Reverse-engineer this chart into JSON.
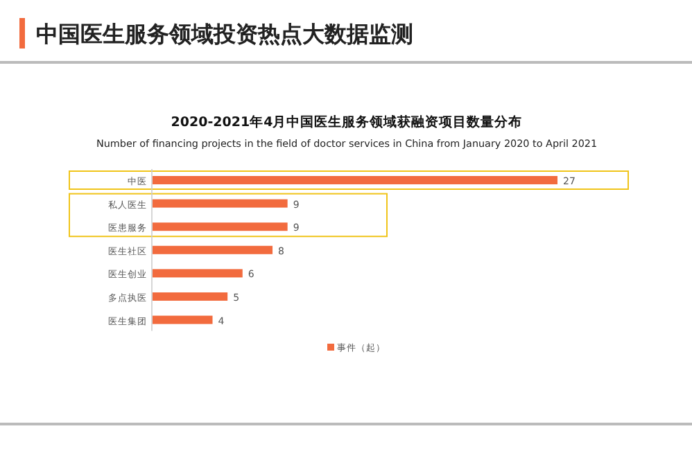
{
  "chart_data": {
    "type": "bar",
    "orientation": "horizontal",
    "title": "2020-2021年4月中国医生服务领域获融资项目数量分布",
    "subtitle": "Number of financing projects in the field of doctor services in China from January 2020 to April 2021",
    "annotations": [
      "中国医生服务领域投资热点大数据监测"
    ],
    "categories": [
      "中医",
      "私人医生",
      "医患服务",
      "医生社区",
      "医生创业",
      "多点执医",
      "医生集团"
    ],
    "series": [
      {
        "name": "事件（起）",
        "color": "#f26b3e",
        "values": [
          27,
          9,
          9,
          8,
          6,
          5,
          4
        ]
      }
    ],
    "data_labels": true,
    "legend": "bottom"
  }
}
